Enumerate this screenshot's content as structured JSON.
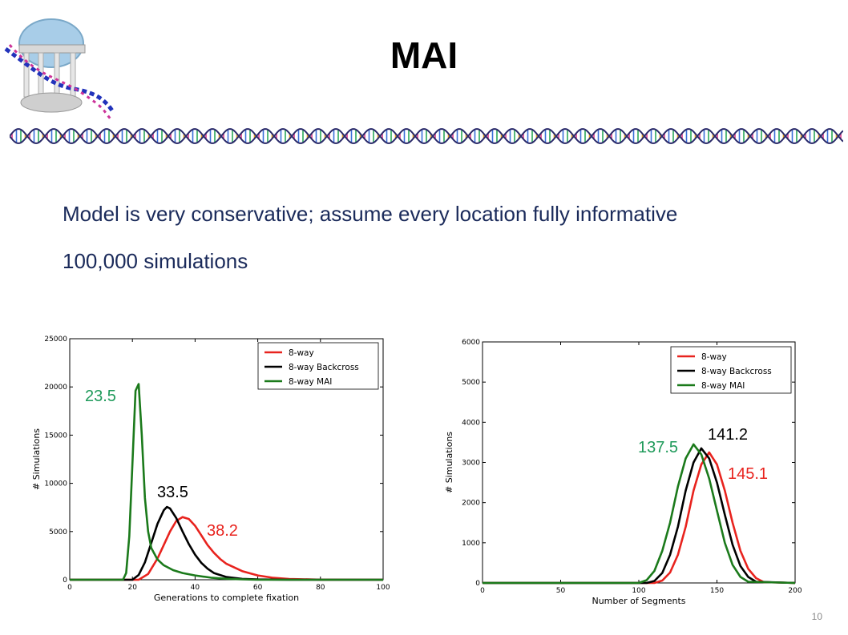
{
  "slide": {
    "title": "MAI",
    "bullets": [
      "Model is very conservative; assume every location fully informative",
      "100,000 simulations"
    ],
    "page_number": "10"
  },
  "colors": {
    "red": "#e8231e",
    "black": "#000000",
    "green": "#1b7a1b",
    "annot_green": "#1e9a5a",
    "annot_red": "#e8231e"
  },
  "icons": [
    "old-well-logo-icon",
    "dna-strand-divider-icon"
  ],
  "chart_data": [
    {
      "type": "line",
      "xlabel": "Generations to complete fixation",
      "ylabel": "# Simulations",
      "xlim": [
        0,
        100
      ],
      "ylim": [
        0,
        25000
      ],
      "xticks": [
        0,
        20,
        40,
        60,
        80,
        100
      ],
      "yticks": [
        0,
        5000,
        10000,
        15000,
        20000,
        25000
      ],
      "grid": false,
      "legend_position": "top-right",
      "series": [
        {
          "name": "8-way",
          "color": "#e8231e",
          "x": [
            0,
            22,
            25,
            28,
            30,
            32,
            34,
            36,
            38,
            40,
            42,
            44,
            46,
            48,
            50,
            55,
            60,
            65,
            70,
            80,
            100
          ],
          "y": [
            0,
            0,
            600,
            2200,
            3600,
            5000,
            6100,
            6500,
            6300,
            5600,
            4600,
            3600,
            2800,
            2150,
            1650,
            900,
            450,
            200,
            80,
            10,
            0
          ]
        },
        {
          "name": "8-way Backcross",
          "color": "#000000",
          "x": [
            0,
            20,
            22,
            24,
            26,
            28,
            30,
            31,
            32,
            34,
            36,
            38,
            40,
            42,
            44,
            46,
            50,
            55,
            60,
            70,
            100
          ],
          "y": [
            0,
            0,
            500,
            1800,
            3800,
            5800,
            7200,
            7550,
            7400,
            6400,
            5000,
            3700,
            2600,
            1750,
            1150,
            700,
            280,
            90,
            30,
            0,
            0
          ]
        },
        {
          "name": "8-way MAI",
          "color": "#1b7a1b",
          "x": [
            0,
            17,
            18,
            19,
            20,
            21,
            22,
            23,
            24,
            25,
            26,
            28,
            30,
            33,
            36,
            40,
            45,
            50,
            55,
            60,
            100
          ],
          "y": [
            0,
            0,
            700,
            4500,
            12000,
            19600,
            20300,
            15000,
            8500,
            5000,
            3300,
            2100,
            1500,
            1000,
            700,
            450,
            220,
            100,
            40,
            0,
            0
          ]
        }
      ],
      "annotations": [
        {
          "text": "23.5",
          "color": "#1e9a5a"
        },
        {
          "text": "33.5",
          "color": "#000000"
        },
        {
          "text": "38.2",
          "color": "#e8231e"
        }
      ]
    },
    {
      "type": "line",
      "xlabel": "Number of Segments",
      "ylabel": "# Simulations",
      "xlim": [
        0,
        200
      ],
      "ylim": [
        0,
        6000
      ],
      "xticks": [
        0,
        50,
        100,
        150,
        200
      ],
      "yticks": [
        0,
        1000,
        2000,
        3000,
        4000,
        5000,
        6000
      ],
      "grid": false,
      "legend_position": "top-right",
      "series": [
        {
          "name": "8-way",
          "color": "#e8231e",
          "x": [
            0,
            110,
            115,
            120,
            125,
            130,
            135,
            140,
            145,
            150,
            155,
            160,
            165,
            170,
            175,
            180,
            200
          ],
          "y": [
            0,
            0,
            60,
            260,
            700,
            1400,
            2300,
            2950,
            3250,
            2950,
            2300,
            1500,
            800,
            350,
            120,
            20,
            0
          ]
        },
        {
          "name": "8-way Backcross",
          "color": "#000000",
          "x": [
            0,
            105,
            110,
            115,
            120,
            125,
            130,
            135,
            140,
            145,
            150,
            155,
            160,
            165,
            170,
            175,
            200
          ],
          "y": [
            0,
            0,
            50,
            250,
            700,
            1400,
            2300,
            3000,
            3350,
            3100,
            2500,
            1700,
            950,
            420,
            150,
            30,
            0
          ]
        },
        {
          "name": "8-way MAI",
          "color": "#1b7a1b",
          "x": [
            0,
            100,
            105,
            110,
            115,
            120,
            125,
            130,
            135,
            140,
            145,
            150,
            155,
            160,
            165,
            170,
            200
          ],
          "y": [
            0,
            0,
            70,
            300,
            800,
            1500,
            2400,
            3100,
            3450,
            3200,
            2600,
            1800,
            1000,
            450,
            150,
            30,
            0
          ]
        }
      ],
      "annotations": [
        {
          "text": "137.5",
          "color": "#1e9a5a"
        },
        {
          "text": "141.2",
          "color": "#000000"
        },
        {
          "text": "145.1",
          "color": "#e8231e"
        }
      ]
    }
  ]
}
